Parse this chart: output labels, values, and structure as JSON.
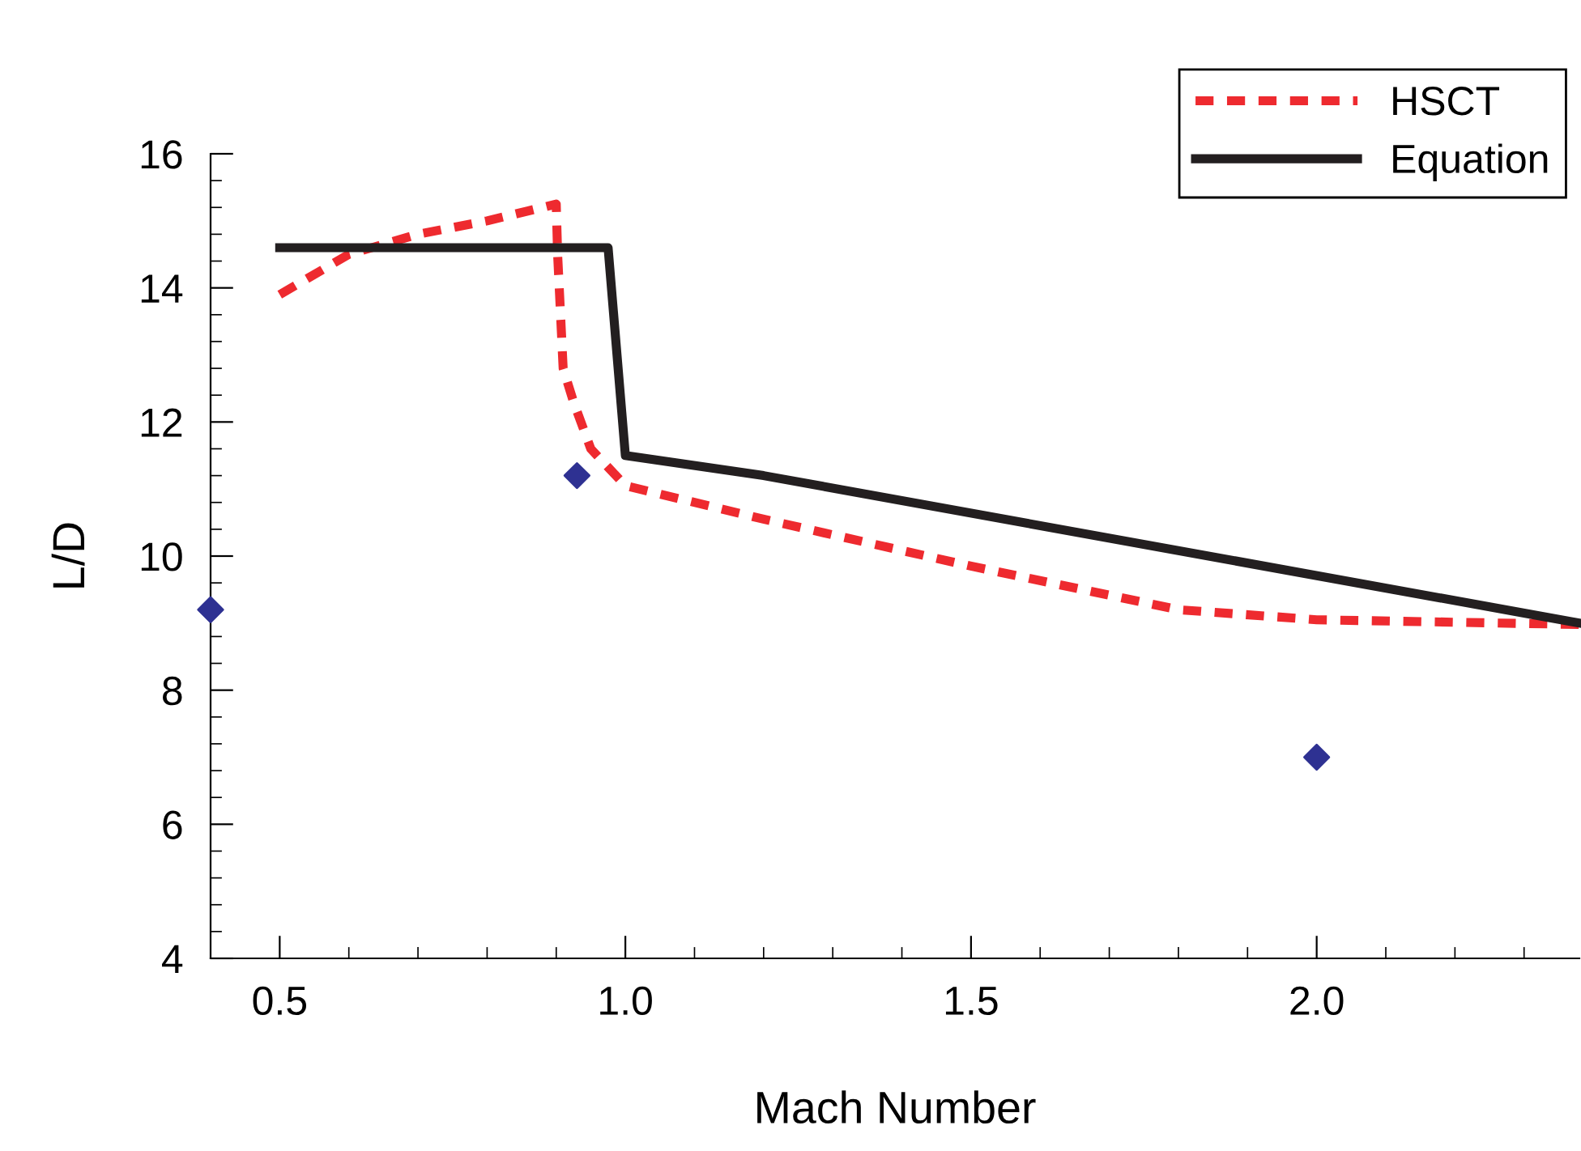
{
  "chart_data": {
    "type": "line",
    "xlabel": "Mach Number",
    "ylabel": "L/D",
    "xlim": [
      0.4,
      2.38
    ],
    "xticks": [
      {
        "value": 0.5,
        "label": "0.5"
      },
      {
        "value": 1.0,
        "label": "1.0"
      },
      {
        "value": 1.5,
        "label": "1.5"
      },
      {
        "value": 2.0,
        "label": "2.0"
      }
    ],
    "ylim": [
      4,
      16
    ],
    "yticks": [
      4,
      6,
      8,
      10,
      12,
      14,
      16
    ],
    "grid": false,
    "legend": "top right",
    "series": [
      {
        "name": "HSCT",
        "color": "#ee2a2f",
        "line_style": "dashed",
        "marker": "none",
        "x": [
          0.5,
          0.6,
          0.7,
          0.8,
          0.9,
          0.902,
          0.91,
          0.925,
          0.95,
          1.0,
          1.2,
          1.5,
          1.8,
          2.0,
          2.38
        ],
        "values": [
          13.9,
          14.5,
          14.8,
          15.0,
          15.25,
          14.5,
          12.8,
          12.3,
          11.6,
          11.05,
          10.55,
          9.85,
          9.2,
          9.05,
          8.98
        ]
      },
      {
        "name": "Equation",
        "color": "#231f20",
        "line_style": "solid",
        "marker": "none",
        "x": [
          0.5,
          0.6,
          0.975,
          1.0,
          1.2,
          2.38
        ],
        "values": [
          14.6,
          14.6,
          14.6,
          11.5,
          11.2,
          9.0
        ]
      },
      {
        "type": "scatter",
        "color": "#2e3192",
        "marker": "diamond",
        "x": [
          0.4,
          0.93,
          2.0
        ],
        "values": [
          9.2,
          11.2,
          7.0
        ]
      }
    ]
  }
}
